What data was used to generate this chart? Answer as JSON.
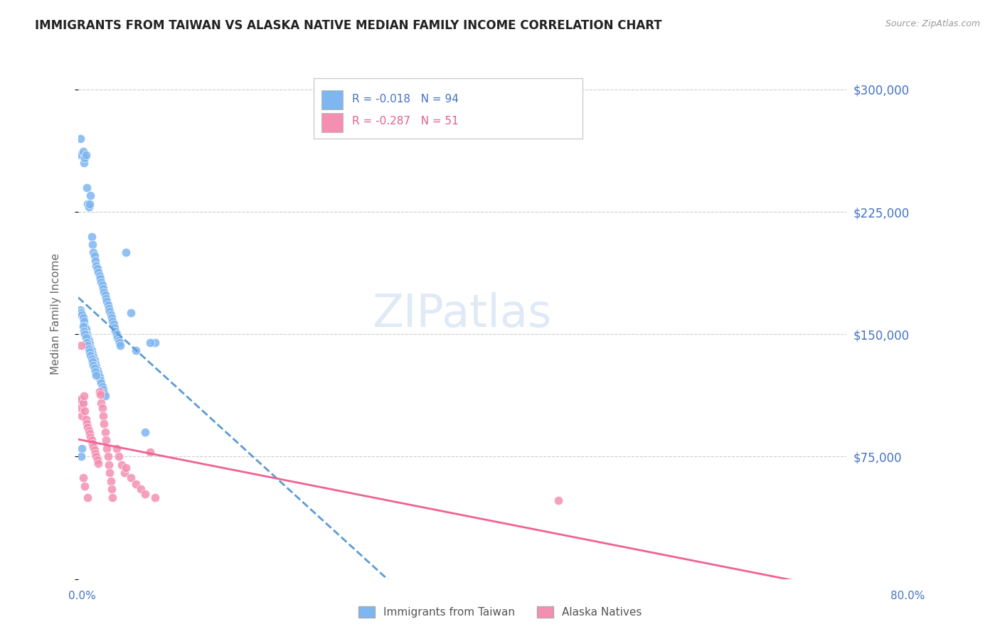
{
  "title": "IMMIGRANTS FROM TAIWAN VS ALASKA NATIVE MEDIAN FAMILY INCOME CORRELATION CHART",
  "source": "Source: ZipAtlas.com",
  "ylabel": "Median Family Income",
  "yticks": [
    0,
    75000,
    150000,
    225000,
    300000
  ],
  "ytick_labels": [
    "",
    "$75,000",
    "$150,000",
    "$225,000",
    "$300,000"
  ],
  "xlim": [
    0.0,
    0.8
  ],
  "ylim": [
    0,
    325000
  ],
  "blue_R": -0.018,
  "blue_N": 94,
  "pink_R": -0.287,
  "pink_N": 51,
  "blue_color": "#7EB6F0",
  "pink_color": "#F48FB1",
  "trend_blue_color": "#5B9BD5",
  "trend_pink_color": "#F06292",
  "grid_color": "#CCCCCC",
  "background_color": "#FFFFFF",
  "blue_scatter_x": [
    0.002,
    0.003,
    0.005,
    0.006,
    0.007,
    0.008,
    0.009,
    0.01,
    0.011,
    0.012,
    0.013,
    0.014,
    0.015,
    0.016,
    0.017,
    0.018,
    0.019,
    0.02,
    0.021,
    0.022,
    0.023,
    0.024,
    0.025,
    0.026,
    0.027,
    0.028,
    0.029,
    0.03,
    0.031,
    0.032,
    0.033,
    0.034,
    0.035,
    0.036,
    0.037,
    0.038,
    0.039,
    0.04,
    0.041,
    0.042,
    0.043,
    0.044,
    0.05,
    0.055,
    0.06,
    0.07,
    0.08,
    0.002,
    0.003,
    0.004,
    0.005,
    0.006,
    0.007,
    0.008,
    0.009,
    0.01,
    0.011,
    0.012,
    0.013,
    0.014,
    0.015,
    0.016,
    0.017,
    0.018,
    0.019,
    0.02,
    0.021,
    0.022,
    0.023,
    0.024,
    0.025,
    0.026,
    0.027,
    0.028,
    0.003,
    0.004,
    0.005,
    0.006,
    0.007,
    0.008,
    0.009,
    0.01,
    0.011,
    0.012,
    0.013,
    0.014,
    0.015,
    0.016,
    0.017,
    0.018,
    0.019,
    0.075,
    0.004,
    0.003
  ],
  "blue_scatter_y": [
    270000,
    260000,
    262000,
    255000,
    258000,
    260000,
    240000,
    230000,
    228000,
    230000,
    235000,
    210000,
    205000,
    200000,
    198000,
    195000,
    192000,
    190000,
    188000,
    186000,
    184000,
    182000,
    180000,
    178000,
    176000,
    174000,
    172000,
    170000,
    168000,
    166000,
    164000,
    162000,
    160000,
    158000,
    156000,
    154000,
    152000,
    150000,
    148000,
    146000,
    145000,
    143000,
    200000,
    163000,
    140000,
    90000,
    145000,
    165000,
    163000,
    162000,
    160000,
    158000,
    155000,
    153000,
    150000,
    148000,
    146000,
    144000,
    142000,
    140000,
    138000,
    136000,
    134000,
    132000,
    130000,
    128000,
    126000,
    124000,
    122000,
    120000,
    118000,
    116000,
    114000,
    112000,
    110000,
    108000,
    155000,
    152000,
    150000,
    148000,
    145000,
    143000,
    141000,
    139000,
    137000,
    135000,
    133000,
    131000,
    129000,
    127000,
    125000,
    145000,
    80000,
    75000
  ],
  "pink_scatter_x": [
    0.002,
    0.003,
    0.004,
    0.005,
    0.006,
    0.007,
    0.008,
    0.009,
    0.01,
    0.011,
    0.012,
    0.013,
    0.014,
    0.015,
    0.016,
    0.017,
    0.018,
    0.019,
    0.02,
    0.021,
    0.022,
    0.023,
    0.024,
    0.025,
    0.026,
    0.027,
    0.028,
    0.029,
    0.03,
    0.031,
    0.032,
    0.033,
    0.034,
    0.035,
    0.036,
    0.04,
    0.042,
    0.045,
    0.048,
    0.05,
    0.055,
    0.06,
    0.065,
    0.07,
    0.075,
    0.08,
    0.5,
    0.003,
    0.005,
    0.007,
    0.01
  ],
  "pink_scatter_y": [
    110000,
    105000,
    100000,
    108000,
    112000,
    103000,
    98000,
    95000,
    93000,
    91000,
    89000,
    87000,
    85000,
    83000,
    81000,
    79000,
    77000,
    75000,
    73000,
    71000,
    115000,
    113000,
    108000,
    105000,
    100000,
    95000,
    90000,
    85000,
    80000,
    75000,
    70000,
    65000,
    60000,
    55000,
    50000,
    80000,
    75000,
    70000,
    65000,
    68000,
    62000,
    58000,
    55000,
    52000,
    78000,
    50000,
    48000,
    143000,
    62000,
    57000,
    50000
  ]
}
